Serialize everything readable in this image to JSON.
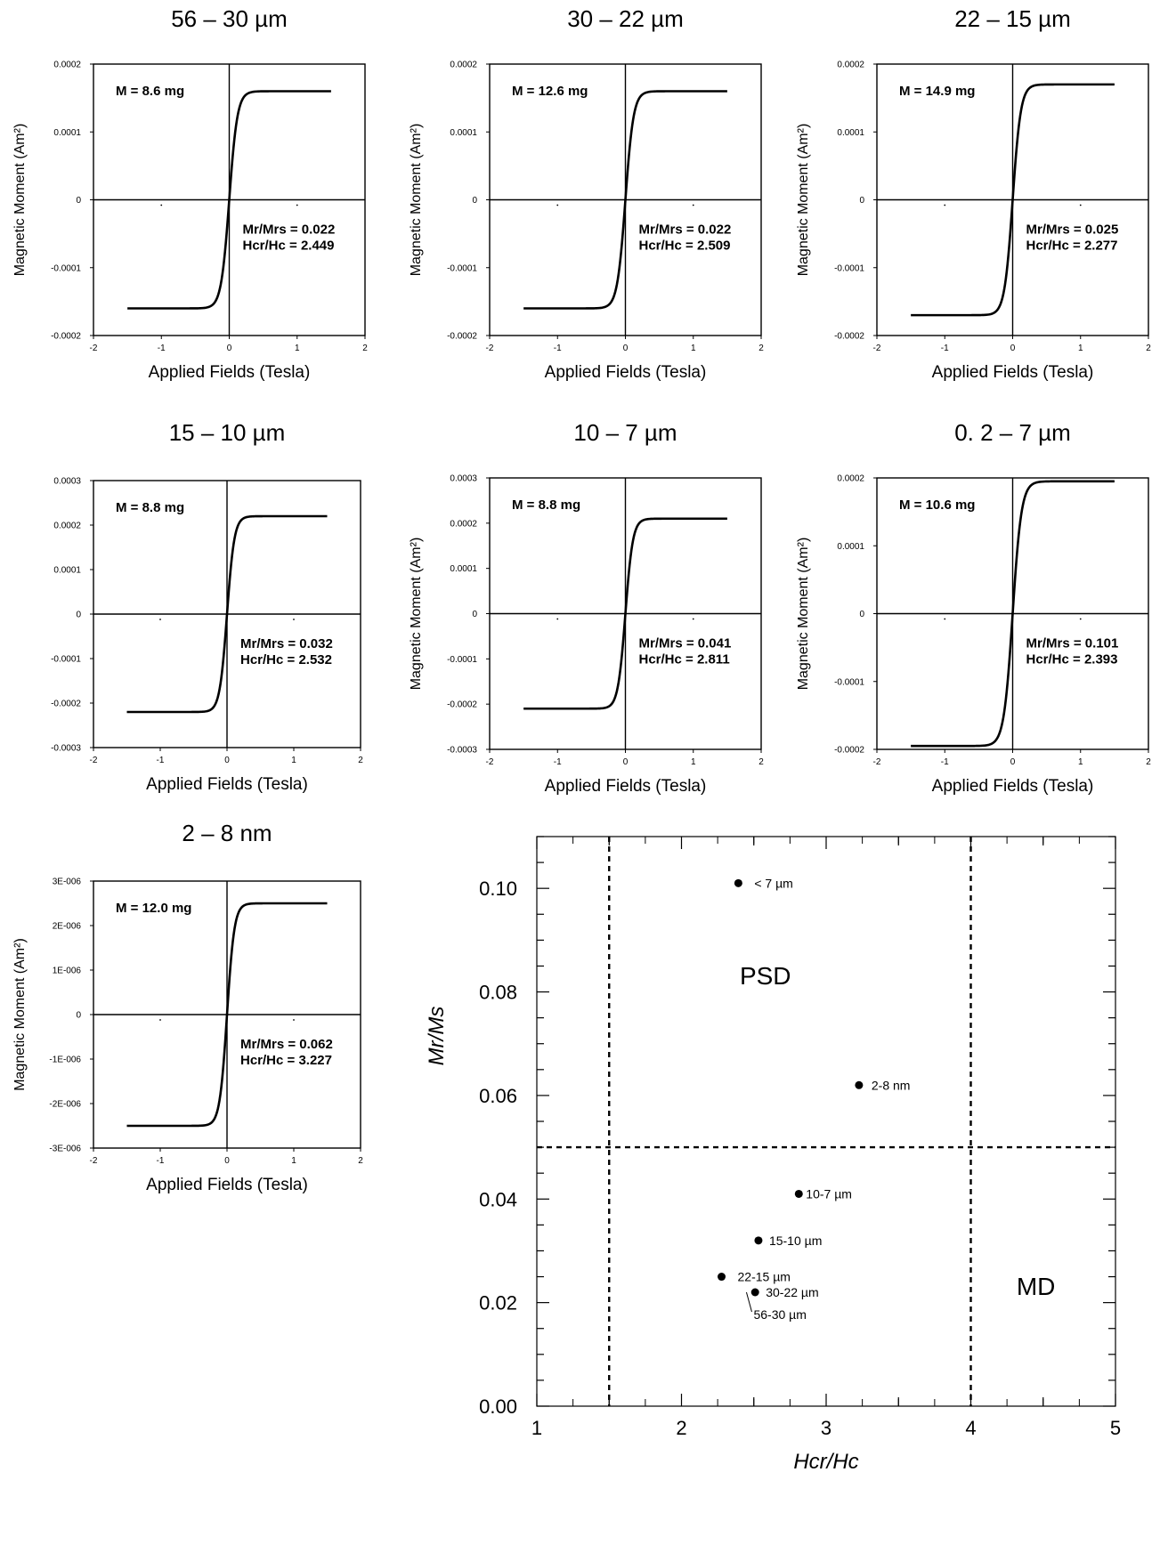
{
  "chart_data": [
    {
      "type": "line",
      "title": "56 – 30 µm",
      "xlabel": "Applied Fields (Tesla)",
      "ylabel": "Magnetic Moment (Am²)",
      "xlim": [
        -2,
        2
      ],
      "ylim": [
        -0.0002,
        0.0002
      ],
      "xticks": [
        "-2",
        "-1",
        "0",
        "1",
        "2"
      ],
      "yticks": [
        "0.0002",
        "0.0001",
        "0",
        "-0.0001",
        "-0.0002"
      ],
      "ytick_values": [
        0.0002,
        0.0001,
        0,
        -0.0001,
        -0.0002
      ],
      "mass": "M = 8.6 mg",
      "ratio1": "Mr/Mrs = 0.022",
      "ratio2": "Hcr/Hc = 2.449",
      "ms": 0.00016,
      "x_range": [
        -1.5,
        1.5
      ],
      "steepness": 0.12
    },
    {
      "type": "line",
      "title": "30 – 22 µm",
      "xlabel": "Applied Fields (Tesla)",
      "ylabel": "Magnetic Moment (Am²)",
      "xlim": [
        -2,
        2
      ],
      "ylim": [
        -0.0002,
        0.0002
      ],
      "xticks": [
        "-2",
        "-1",
        "0",
        "1",
        "2"
      ],
      "yticks": [
        "0.0002",
        "0.0001",
        "0",
        "-0.0001",
        "-0.0002"
      ],
      "ytick_values": [
        0.0002,
        0.0001,
        0,
        -0.0001,
        -0.0002
      ],
      "mass": "M = 12.6 mg",
      "ratio1": "Mr/Mrs = 0.022",
      "ratio2": "Hcr/Hc = 2.509",
      "ms": 0.00016,
      "x_range": [
        -1.5,
        1.5
      ],
      "steepness": 0.12
    },
    {
      "type": "line",
      "title": "22 – 15 µm",
      "xlabel": "Applied Fields (Tesla)",
      "ylabel": "Magnetic Moment (Am²)",
      "xlim": [
        -2,
        2
      ],
      "ylim": [
        -0.0002,
        0.0002
      ],
      "xticks": [
        "-2",
        "-1",
        "0",
        "1",
        "2"
      ],
      "yticks": [
        "0.0002",
        "0.0001",
        "0",
        "-0.0001",
        "-0.0002"
      ],
      "ytick_values": [
        0.0002,
        0.0001,
        0,
        -0.0001,
        -0.0002
      ],
      "mass": "M = 14.9 mg",
      "ratio1": "Mr/Mrs = 0.025",
      "ratio2": "Hcr/Hc = 2.277",
      "ms": 0.00017,
      "x_range": [
        -1.5,
        1.5
      ],
      "steepness": 0.12
    },
    {
      "type": "line",
      "title": "15 – 10 µm",
      "xlabel": "Applied Fields (Tesla)",
      "ylabel": "",
      "xlim": [
        -2,
        2
      ],
      "ylim": [
        -0.0003,
        0.0003
      ],
      "xticks": [
        "-2",
        "-1",
        "0",
        "1",
        "2"
      ],
      "yticks": [
        "0.0003",
        "0.0002",
        "0.0001",
        "0",
        "-0.0001",
        "-0.0002",
        "-0.0003"
      ],
      "ytick_values": [
        0.0003,
        0.0002,
        0.0001,
        0,
        -0.0001,
        -0.0002,
        -0.0003
      ],
      "mass": "M = 8.8 mg",
      "ratio1": "Mr/Mrs = 0.032",
      "ratio2": "Hcr/Hc = 2.532",
      "ms": 0.00022,
      "x_range": [
        -1.5,
        1.5
      ],
      "steepness": 0.11
    },
    {
      "type": "line",
      "title": "10 – 7 µm",
      "xlabel": "Applied Fields (Tesla)",
      "ylabel": "Magnetic Moment (Am²)",
      "xlim": [
        -2,
        2
      ],
      "ylim": [
        -0.0003,
        0.0003
      ],
      "xticks": [
        "-2",
        "-1",
        "0",
        "1",
        "2"
      ],
      "yticks": [
        "0.0003",
        "0.0002",
        "0.0001",
        "0",
        "-0.0001",
        "-0.0002",
        "-0.0003"
      ],
      "ytick_values": [
        0.0003,
        0.0002,
        0.0001,
        0,
        -0.0001,
        -0.0002,
        -0.0003
      ],
      "mass": "M = 8.8 mg",
      "ratio1": "Mr/Mrs = 0.041",
      "ratio2": "Hcr/Hc = 2.811",
      "ms": 0.00021,
      "x_range": [
        -1.5,
        1.5
      ],
      "steepness": 0.11
    },
    {
      "type": "line",
      "title": "0. 2 – 7 µm",
      "xlabel": "Applied Fields (Tesla)",
      "ylabel": "Magnetic Moment (Am²)",
      "xlim": [
        -2,
        2
      ],
      "ylim": [
        -0.0002,
        0.0002
      ],
      "xticks": [
        "-2",
        "-1",
        "0",
        "1",
        "2"
      ],
      "yticks": [
        "0.0002",
        "0.0001",
        "0",
        "-0.0001",
        "-0.0002"
      ],
      "ytick_values": [
        0.0002,
        0.0001,
        0,
        -0.0001,
        -0.0002
      ],
      "mass": "M = 10.6 mg",
      "ratio1": "Mr/Mrs = 0.101",
      "ratio2": "Hcr/Hc = 2.393",
      "ms": 0.000195,
      "x_range": [
        -1.5,
        1.5
      ],
      "steepness": 0.13
    },
    {
      "type": "line",
      "title": "2 – 8 nm",
      "xlabel": "Applied Fields (Tesla)",
      "ylabel": "Magnetic Moment (Am²)",
      "xlim": [
        -2,
        2
      ],
      "ylim": [
        -3e-06,
        3e-06
      ],
      "xticks": [
        "-2",
        "-1",
        "0",
        "1",
        "2"
      ],
      "yticks": [
        "3E-006",
        "2E-006",
        "1E-006",
        "0",
        "-1E-006",
        "-2E-006",
        "-3E-006"
      ],
      "ytick_values": [
        3e-06,
        2e-06,
        1e-06,
        0,
        -1e-06,
        -2e-06,
        -3e-06
      ],
      "mass": "M = 12.0 mg",
      "ratio1": "Mr/Mrs = 0.062",
      "ratio2": "Hcr/Hc = 3.227",
      "ms": 2.5e-06,
      "x_range": [
        -1.5,
        1.5
      ],
      "steepness": 0.11
    },
    {
      "type": "scatter",
      "title": "",
      "xlabel": "Hcr/Hc",
      "ylabel": "Mr/Ms",
      "xlim": [
        1,
        5
      ],
      "ylim": [
        0,
        0.11
      ],
      "xticks": [
        "1",
        "2",
        "3",
        "4",
        "5"
      ],
      "yticks": [
        "0.10",
        "0.08",
        "0.06",
        "0.04",
        "0.02",
        "0.00"
      ],
      "ytick_values": [
        0.1,
        0.08,
        0.06,
        0.04,
        0.02,
        0.0
      ],
      "thresholds": {
        "x": [
          1.5,
          4
        ],
        "y": [
          0.05
        ]
      },
      "regions": [
        "PSD",
        "MD"
      ],
      "points": [
        {
          "x": 2.393,
          "y": 0.101,
          "label": "< 7 µm"
        },
        {
          "x": 3.227,
          "y": 0.062,
          "label": "2-8 nm"
        },
        {
          "x": 2.811,
          "y": 0.041,
          "label": "10-7 µm"
        },
        {
          "x": 2.532,
          "y": 0.032,
          "label": "15-10 µm"
        },
        {
          "x": 2.277,
          "y": 0.025,
          "label": "22-15 µm"
        },
        {
          "x": 2.509,
          "y": 0.022,
          "label": "30-22 µm"
        },
        {
          "x": 2.449,
          "y": 0.022,
          "label": "56-30 µm"
        }
      ]
    }
  ]
}
